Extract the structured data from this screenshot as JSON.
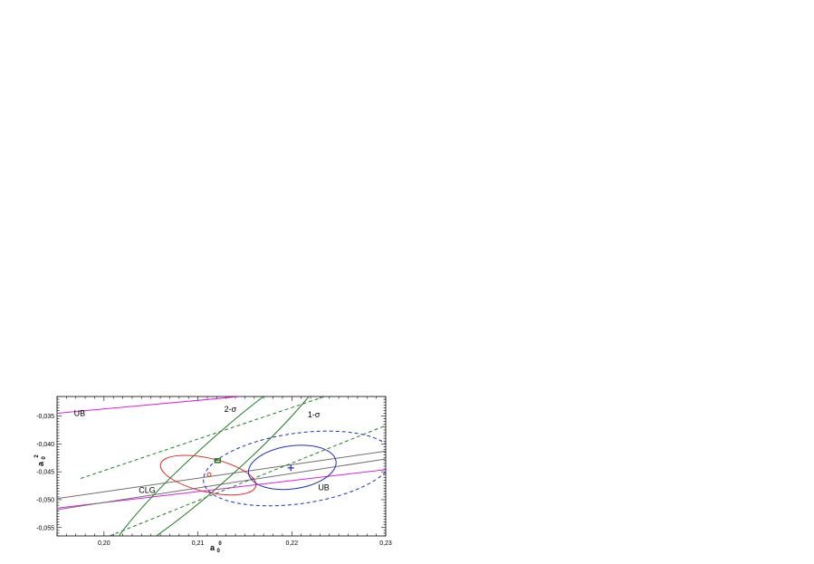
{
  "chart_data": {
    "type": "line",
    "title": "",
    "xlabel": "a0 0",
    "xlabel_main": "a",
    "xlabel_sup": "0",
    "xlabel_sub": "0",
    "ylabel_main": "a",
    "ylabel_sup": "2",
    "ylabel_sub": "0",
    "xlim": [
      0.195,
      0.23
    ],
    "ylim": [
      -0.0565,
      -0.0315
    ],
    "xticks": [
      0.2,
      0.21,
      0.22,
      0.23
    ],
    "xtick_labels": [
      "0,20",
      "0,21",
      "0,22",
      "0,23"
    ],
    "yticks": [
      -0.035,
      -0.04,
      -0.045,
      -0.05,
      -0.055
    ],
    "ytick_labels": [
      "-0,035",
      "-0,040",
      "-0,045",
      "-0,050",
      "-0,055"
    ],
    "grid": false,
    "series": [
      {
        "name": "UB",
        "kind": "line",
        "color": "#e020e0",
        "dash": "solid",
        "x": [
          0.195,
          0.2145
        ],
        "y": [
          -0.0345,
          -0.0315
        ]
      },
      {
        "name": "UB",
        "kind": "line",
        "color": "#e020e0",
        "dash": "solid",
        "x": [
          0.195,
          0.23
        ],
        "y": [
          -0.0515,
          -0.0446
        ]
      },
      {
        "name": "CLG",
        "kind": "line",
        "color": "#707070",
        "dash": "solid",
        "x": [
          0.195,
          0.23
        ],
        "y": [
          -0.0498,
          -0.0413
        ]
      },
      {
        "name": "CLG",
        "kind": "line",
        "color": "#707070",
        "dash": "solid",
        "x": [
          0.195,
          0.23
        ],
        "y": [
          -0.0518,
          -0.0427
        ]
      },
      {
        "name": "2-σ",
        "kind": "line",
        "color": "#208020",
        "dash": "dashed",
        "x": [
          0.1975,
          0.2235
        ],
        "y": [
          -0.0462,
          -0.0315
        ]
      },
      {
        "name": "2-σ",
        "kind": "line",
        "color": "#208020",
        "dash": "dashed",
        "x": [
          0.2006,
          0.23
        ],
        "y": [
          -0.0565,
          -0.0367
        ]
      },
      {
        "name": "1-σ",
        "kind": "ellipse",
        "color": "#208020",
        "dash": "solid",
        "cx": 0.21225,
        "cy": -0.0428,
        "rx": 0.0155,
        "ry": 0.00065,
        "angle_deg": 42
      },
      {
        "name": "",
        "kind": "ellipse",
        "color": "#e03030",
        "dash": "solid",
        "cx": 0.2111,
        "cy": -0.0456,
        "rx": 0.0052,
        "ry": 0.00055,
        "angle_deg": -13
      },
      {
        "name": "",
        "kind": "ellipse",
        "color": "#2030c0",
        "dash": "solid",
        "cx": 0.22005,
        "cy": -0.0442,
        "rx": 0.0047,
        "ry": 0.0007,
        "angle_deg": 8
      },
      {
        "name": "",
        "kind": "ellipse",
        "color": "#2030c0",
        "dash": "dashed",
        "cx": 0.2207,
        "cy": -0.0444,
        "rx": 0.0102,
        "ry": 0.00115,
        "angle_deg": 8
      }
    ],
    "markers": [
      {
        "kind": "square",
        "color": "#208020",
        "x": 0.2121,
        "y": -0.043
      },
      {
        "kind": "cross",
        "color": "#2030c0",
        "x": 0.2199,
        "y": -0.0443
      },
      {
        "kind": "circle",
        "color": "#e03030",
        "x": 0.2112,
        "y": -0.0455
      }
    ],
    "annotations": [
      {
        "text": "UB",
        "x": 0.1968,
        "y": -0.035
      },
      {
        "text": "2-σ",
        "x": 0.2128,
        "y": -0.0343
      },
      {
        "text": "1-σ",
        "x": 0.2217,
        "y": -0.0352
      },
      {
        "text": "CLG",
        "x": 0.2037,
        "y": -0.0488
      },
      {
        "text": "UB",
        "x": 0.2228,
        "y": -0.0483
      }
    ]
  }
}
